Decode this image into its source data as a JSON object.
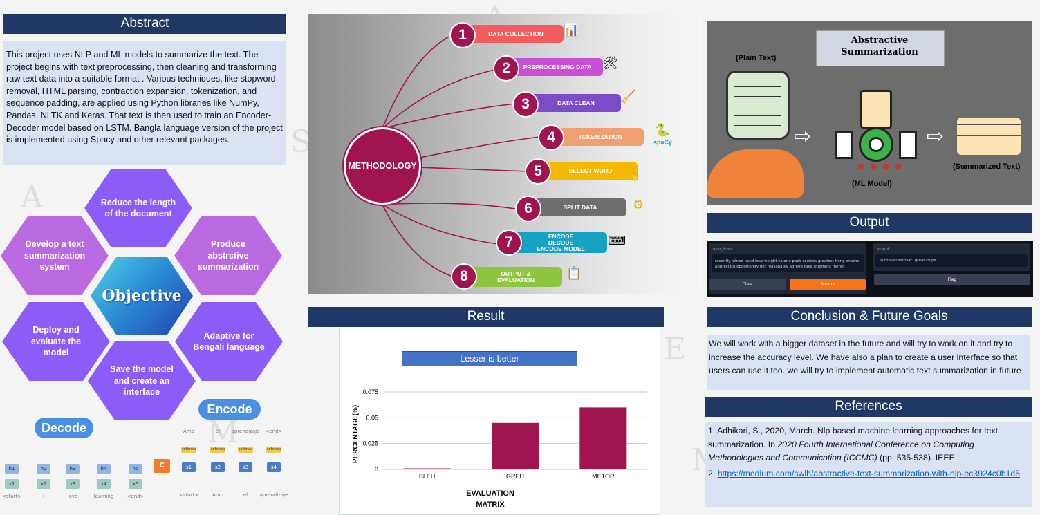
{
  "abstract": {
    "title": "Abstract",
    "text": "This project uses NLP and ML models to summarize the text. The project begins with text preprocessing, then cleaning and transforming raw text data into a suitable format . Various techniques, like stopword removal, HTML parsing, contraction expansion, tokenization, and sequence padding, are applied using Python libraries like NumPy, Pandas, NLTK and Keras. That text is then used to train an Encoder-Decoder model based on LSTM. Bangla language version of the project is implemented using Spacy and other relevant packages."
  },
  "objective": {
    "center_label": "Objective",
    "items": [
      "Reduce the length of the document",
      "Produce abstrctive summarization",
      "Adaptive for Bengali language",
      "Save the model and create an interface",
      "Deploy and evaluate the model",
      "Develop a  text summarization system"
    ],
    "colors": {
      "violet": "#8b5cf6",
      "orchid": "#b96ae0"
    }
  },
  "encoder_decoder": {
    "encode_label": "Encode",
    "decode_label": "Decode",
    "c_label": "C",
    "decoder_h": [
      "h1",
      "h2",
      "h3",
      "h4",
      "h5"
    ],
    "decoder_x": [
      "x1",
      "x2",
      "x3",
      "x4",
      "x5"
    ],
    "decoder_tokens": [
      "<start>",
      "I",
      "love",
      "learning",
      "<end>"
    ],
    "softmax_label": "softmax",
    "encoder_s": [
      "s1",
      "s2",
      "s3",
      "s4"
    ],
    "encoder_top_tokens": [
      "Amo",
      "el",
      "aprendizaje",
      "<end>"
    ],
    "encoder_bottom_tokens": [
      "<start>",
      "Amo",
      "el",
      "aprendizaje"
    ]
  },
  "methodology": {
    "center_label": "METHODOLOGY",
    "steps": [
      {
        "num": "1",
        "label": "DATA COLLECTION",
        "color": "#f25c5c",
        "icon": "📊"
      },
      {
        "num": "2",
        "label": "PREPROCESSING DATA",
        "color": "#c94fd6",
        "icon": "🛠"
      },
      {
        "num": "3",
        "label": "DATA CLEAN",
        "color": "#7b4cc8",
        "icon": "🧹"
      },
      {
        "num": "4",
        "label": "TOKENIZATION",
        "color": "#f0a070",
        "icon": "🐍"
      },
      {
        "num": "5",
        "label": "SELECT WORD",
        "color": "#f5b800",
        "icon": "👆"
      },
      {
        "num": "6",
        "label": "SPLIT DATA",
        "color": "#6e6e6e",
        "icon": "⚙"
      },
      {
        "num": "7",
        "label": "ENCODE DECODE ENCODE MODEL",
        "color": "#17a2c2",
        "icon": "⌨"
      },
      {
        "num": "8",
        "label": "OUTPUT & EVALUATION",
        "color": "#8cc63f",
        "icon": "📋"
      }
    ],
    "spacy_label": "spaCy"
  },
  "summarization": {
    "title": "Abstractive Summarization",
    "plain_text_label": "(Plain Text)",
    "ml_model_label": "(ML  Model)",
    "summarized_label": "(Summarized Text)"
  },
  "output": {
    "title": "Output",
    "input_label": "user_input",
    "input_text": "recently joined need lose weight calorie pack cookies greatest thing snacks appreciate opportunity get reasonably agreed take shipment month",
    "output_label": "output",
    "output_text": "Summarized text:  great chips",
    "clear_label": "Clear",
    "submit_label": "Submit",
    "flag_label": "Flag"
  },
  "result": {
    "title": "Result",
    "note": "Lesser is better"
  },
  "chart_data": {
    "type": "bar",
    "categories": [
      "BLEU",
      "GREU",
      "METOR"
    ],
    "values": [
      0.001,
      0.045,
      0.06
    ],
    "xlabel": "EVALUATION MATRIX",
    "ylabel": "PERCENTAGE(%)",
    "ylim": [
      0,
      0.075
    ],
    "yticks": [
      "0",
      "0.025",
      "0.05",
      "0.075"
    ],
    "bar_color": "#a0144f",
    "grid": true
  },
  "conclusion": {
    "title": "Conclusion & Future Goals",
    "text": "We will work with a bigger dataset in the future and will try to work on it and try to increase the accuracy level. We have also a plan to create a user interface so that users can use it too. we will try to implement  automatic text summarization in future"
  },
  "references": {
    "title": "References",
    "ref1_pre": "1. Adhikari, S., 2020, March. Nlp based machine learning approaches for text summarization. In ",
    "ref1_italic": "2020 Fourth International Conference on Computing Methodologies and Communication (ICCMC)",
    "ref1_post": " (pp. 535-538). IEEE.",
    "ref2_num": "2. ",
    "ref2_link": "https://medium.com/swlh/abstractive-text-summarization-with-nlp-ec3924c0b1d5"
  }
}
